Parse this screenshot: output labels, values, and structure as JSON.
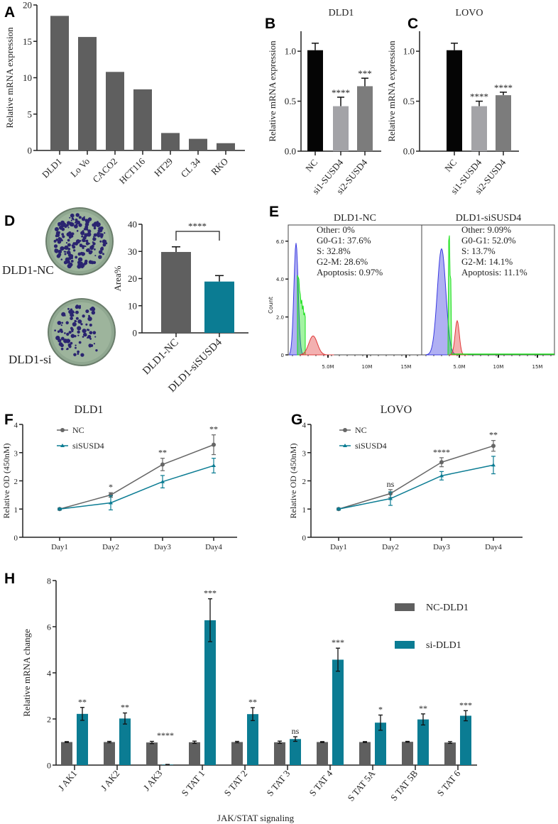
{
  "panel_labels": [
    "A",
    "B",
    "C",
    "D",
    "E",
    "F",
    "G",
    "H"
  ],
  "colors": {
    "gray": "#5f5f5f",
    "teal": "#0b7c93",
    "black": "#050505",
    "light_gray": "#a3a3a7",
    "mid_gray": "#7c7c7c",
    "hist_blue": "#3a3ae0",
    "hist_green": "#19e019",
    "hist_red": "#e03a3a"
  },
  "chart_data": [
    {
      "id": "A",
      "type": "bar",
      "title": "",
      "ylabel": "Relative mRNA expression",
      "ylim": [
        0,
        20
      ],
      "yticks": [
        0,
        5,
        10,
        15,
        20
      ],
      "categories": [
        "DLD1",
        "Lo Vo",
        "CACO2",
        "HCT116",
        "HT29",
        "CL 34",
        "RKO"
      ],
      "values": [
        18.5,
        15.6,
        10.8,
        8.4,
        2.4,
        1.6,
        1.0
      ]
    },
    {
      "id": "B",
      "type": "bar",
      "title": "DLD1",
      "ylabel": "Relative mRNA expression",
      "ylim": [
        0,
        1.2
      ],
      "yticks": [
        "0.0",
        "0.5",
        "1.0"
      ],
      "categories": [
        "NC",
        "si1-SUSD4",
        "si2-SUSD4"
      ],
      "values": [
        1.01,
        0.45,
        0.65
      ],
      "errors": [
        0.07,
        0.09,
        0.08
      ],
      "significance": [
        "",
        "****",
        "***"
      ]
    },
    {
      "id": "C",
      "type": "bar",
      "title": "LOVO",
      "ylabel": "Relative mRNA expression",
      "ylim": [
        0,
        1.2
      ],
      "yticks": [
        "0.0",
        "0.5",
        "1.0"
      ],
      "categories": [
        "NC",
        "si1-SUSD4",
        "si2-SUSD4"
      ],
      "values": [
        1.01,
        0.45,
        0.56
      ],
      "errors": [
        0.07,
        0.05,
        0.03
      ],
      "significance": [
        "",
        "****",
        "****"
      ]
    },
    {
      "id": "D",
      "type": "bar",
      "ylabel": "Area%",
      "ylim": [
        0,
        40
      ],
      "yticks": [
        0,
        10,
        20,
        30,
        40
      ],
      "categories": [
        "DLD1-NC",
        "DLD1-siSUSD4"
      ],
      "values": [
        29.8,
        18.9
      ],
      "errors": [
        1.9,
        2.2
      ],
      "significance": "****",
      "plate_labels": [
        "DLD1-NC",
        "DLD1-si"
      ]
    },
    {
      "id": "E",
      "type": "histogram",
      "ylabel": "Count",
      "yticks": [
        "0",
        "2.0",
        "4.0",
        "6.0"
      ],
      "xticks": [
        "5.0M",
        "10M",
        "15M"
      ],
      "panels": [
        {
          "title": "DLD1-NC",
          "stats": [
            "Other: 0%",
            "G0-G1: 37.6%",
            "S: 32.8%",
            "G2-M: 28.6%",
            "Apoptosis: 0.97%"
          ]
        },
        {
          "title": "DLD1-siSUSD4",
          "stats": [
            "Other: 9.09%",
            "G0-G1: 52.0%",
            "S: 13.7%",
            "G2-M: 14.1%",
            "Apoptosis: 11.1%"
          ]
        }
      ]
    },
    {
      "id": "F",
      "type": "line",
      "title": "DLD1",
      "ylabel": "Relative OD (450nM)",
      "ylim": [
        0,
        4
      ],
      "yticks": [
        0,
        1,
        2,
        3,
        4
      ],
      "x": [
        "Day1",
        "Day2",
        "Day3",
        "Day4"
      ],
      "series": [
        {
          "name": "NC",
          "values": [
            1.0,
            1.5,
            2.58,
            3.28
          ],
          "errors": [
            0.03,
            0.08,
            0.22,
            0.35
          ]
        },
        {
          "name": "siSUSD4",
          "values": [
            1.0,
            1.22,
            1.97,
            2.54
          ],
          "errors": [
            0.03,
            0.25,
            0.22,
            0.26
          ]
        }
      ],
      "significance": [
        "",
        "*",
        "**",
        "**"
      ]
    },
    {
      "id": "G",
      "type": "line",
      "title": "LOVO",
      "ylabel": "Relative OD (450nM)",
      "ylim": [
        0,
        4
      ],
      "yticks": [
        0,
        1,
        2,
        3,
        4
      ],
      "x": [
        "Day1",
        "Day2",
        "Day3",
        "Day4"
      ],
      "series": [
        {
          "name": "NC",
          "values": [
            1.0,
            1.55,
            2.66,
            3.24
          ],
          "errors": [
            0.03,
            0.14,
            0.16,
            0.19
          ]
        },
        {
          "name": "siSUSD4",
          "values": [
            1.0,
            1.37,
            2.18,
            2.56
          ],
          "errors": [
            0.03,
            0.24,
            0.15,
            0.31
          ]
        }
      ],
      "significance": [
        "",
        "ns",
        "****",
        "**"
      ]
    },
    {
      "id": "H",
      "type": "bar",
      "xlabel": "JAK/STAT signaling",
      "ylabel": "Relative mRNA change",
      "ylim": [
        0,
        8
      ],
      "yticks": [
        0,
        2,
        4,
        6,
        8
      ],
      "categories": [
        "J AK1",
        "J AK2",
        "J AK3",
        "S TAT 1",
        "S TAT 2",
        "S TAT 3",
        "S TAT 4",
        "S TAT 5A",
        "S TAT 5B",
        "S TAT 6"
      ],
      "series": [
        {
          "name": "NC-DLD1",
          "values": [
            1.0,
            1.0,
            0.98,
            0.99,
            1.0,
            0.99,
            1.0,
            1.0,
            1.01,
            0.98
          ],
          "errors": [
            0.02,
            0.03,
            0.05,
            0.05,
            0.03,
            0.05,
            0.02,
            0.02,
            0.02,
            0.04
          ]
        },
        {
          "name": "si-DLD1",
          "values": [
            2.22,
            2.02,
            0.02,
            6.28,
            2.21,
            1.13,
            4.57,
            1.84,
            1.98,
            2.14
          ],
          "errors": [
            0.28,
            0.24,
            0.01,
            0.93,
            0.28,
            0.1,
            0.5,
            0.33,
            0.24,
            0.22
          ]
        }
      ],
      "significance": [
        "**",
        "**",
        "****",
        "***",
        "**",
        "ns",
        "***",
        "*",
        "**",
        "***"
      ]
    }
  ]
}
